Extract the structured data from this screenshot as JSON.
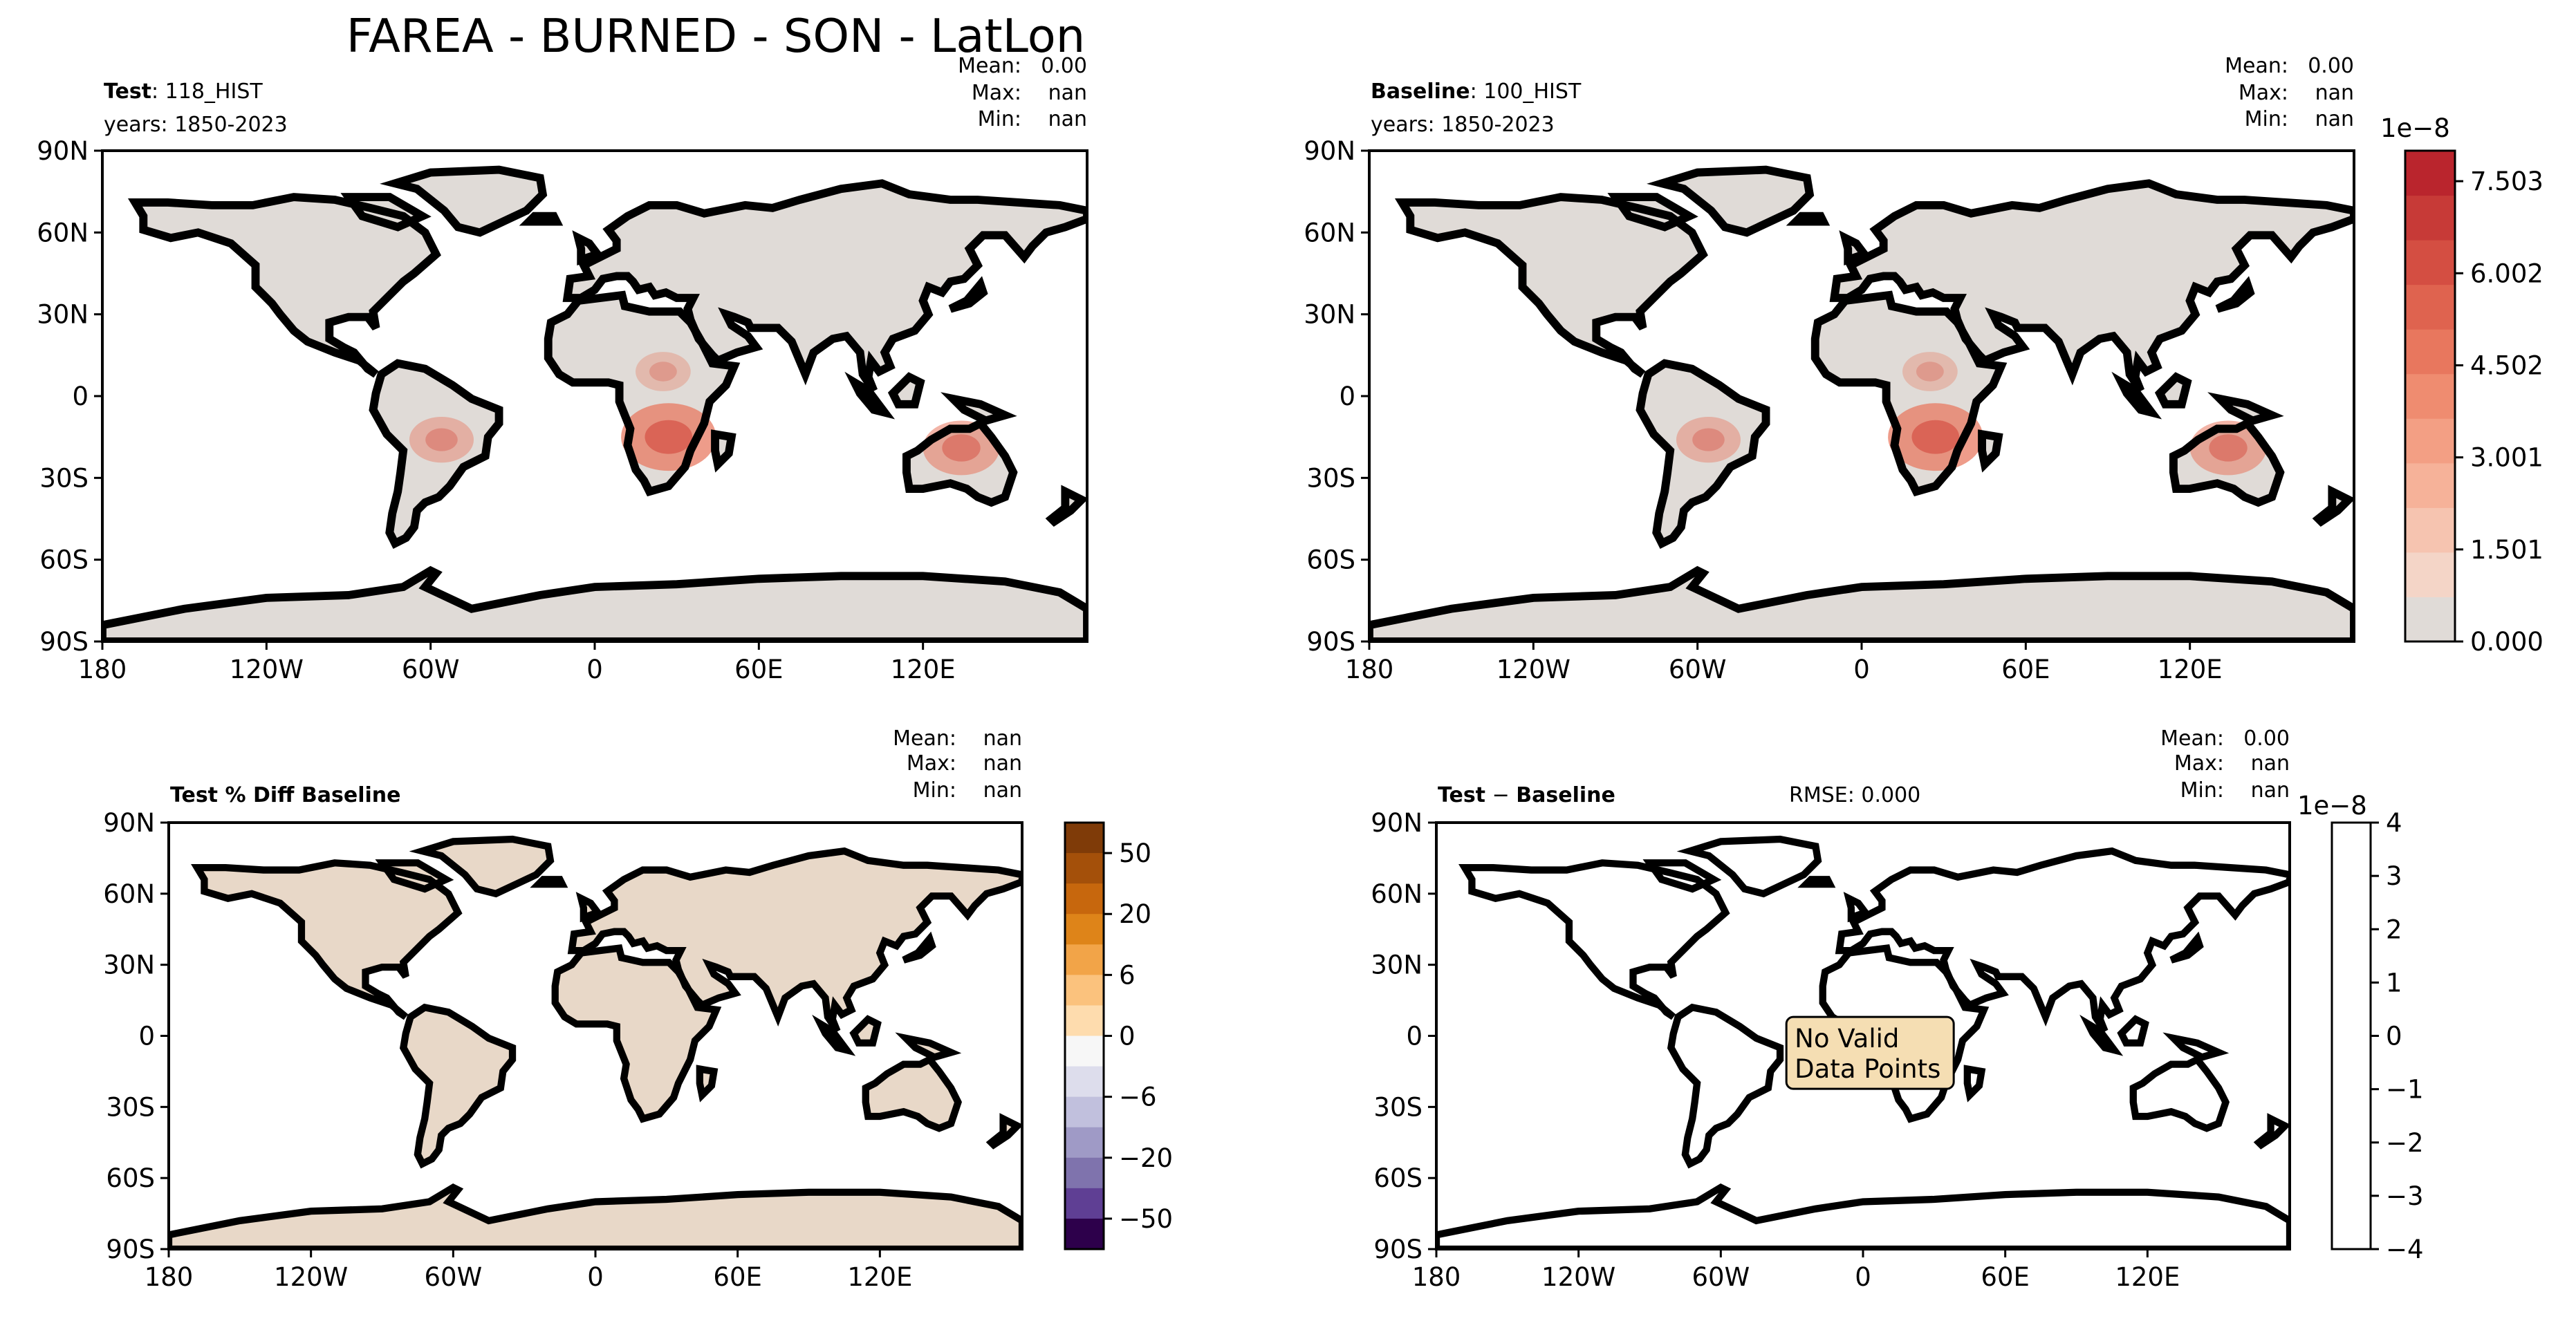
{
  "figure": {
    "title": "FAREA - BURNED - SON - LatLon"
  },
  "chart_data": [
    {
      "type": "heatmap",
      "panel": "test",
      "label_bold": "Test",
      "label_rest": ": 118_HIST",
      "years": "years: 1850-2023",
      "stats": {
        "mean": "0.00",
        "max": "nan",
        "min": "nan"
      },
      "lon_ticks": [
        "180",
        "120W",
        "60W",
        "0",
        "60E",
        "120E"
      ],
      "lat_ticks": [
        "90N",
        "60N",
        "30N",
        "0",
        "30S",
        "60S",
        "90S"
      ],
      "xlim": [
        -180,
        180
      ],
      "ylim": [
        -90,
        90
      ],
      "land_color": "#e0dbd7",
      "hotspots": [
        {
          "region": "southern-africa",
          "lat": -15,
          "lon": 27,
          "level": 0.8
        },
        {
          "region": "northern-australia",
          "lat": -19,
          "lon": 134,
          "level": 0.5
        },
        {
          "region": "south-america",
          "lat": -16,
          "lon": -56,
          "level": 0.3
        },
        {
          "region": "sahel",
          "lat": 9,
          "lon": 25,
          "level": 0.15
        }
      ]
    },
    {
      "type": "heatmap",
      "panel": "baseline",
      "label_bold": "Baseline",
      "label_rest": ": 100_HIST",
      "years": "years: 1850-2023",
      "stats": {
        "mean": "0.00",
        "max": "nan",
        "min": "nan"
      },
      "lon_ticks": [
        "180",
        "120W",
        "60W",
        "0",
        "60E",
        "120E"
      ],
      "lat_ticks": [
        "90N",
        "60N",
        "30N",
        "0",
        "30S",
        "60S",
        "90S"
      ],
      "xlim": [
        -180,
        180
      ],
      "ylim": [
        -90,
        90
      ],
      "land_color": "#e0dbd7",
      "colorbar": {
        "scale_label": "1e−8",
        "ticks": [
          "0.000",
          "1.501",
          "3.001",
          "4.502",
          "6.002",
          "7.503"
        ],
        "range": [
          0,
          8.0
        ],
        "colors": [
          "#e0dbd7",
          "#f4d5c7",
          "#f6c4b0",
          "#f6b299",
          "#f39f84",
          "#ef8c70",
          "#e8775e",
          "#df634f",
          "#d44e42",
          "#c73a37",
          "#ba252d"
        ]
      }
    },
    {
      "type": "heatmap",
      "panel": "percent-diff",
      "label_bold": "Test % Diff Baseline",
      "stats": {
        "mean": "nan",
        "max": "nan",
        "min": "nan"
      },
      "lon_ticks": [
        "180",
        "120W",
        "60W",
        "0",
        "60E",
        "120E"
      ],
      "lat_ticks": [
        "90N",
        "60N",
        "30N",
        "0",
        "30S",
        "60S",
        "90S"
      ],
      "xlim": [
        -180,
        180
      ],
      "ylim": [
        -90,
        90
      ],
      "colorbar": {
        "ticks": [
          "50",
          "20",
          "6",
          "0",
          "−6",
          "−20",
          "−50"
        ],
        "colors": [
          "#7f3b08",
          "#a4500a",
          "#c7670d",
          "#de8419",
          "#f2a448",
          "#fbc27d",
          "#fedcae",
          "#f7f7f7",
          "#ddddec",
          "#c1c0dd",
          "#9f9ac6",
          "#7f73ad",
          "#5f3f94",
          "#2d004b"
        ]
      }
    },
    {
      "type": "heatmap",
      "panel": "difference",
      "label_bold": "Test",
      "label_minus": "−",
      "label_bold2": "Baseline",
      "rmse": "RMSE: 0.000",
      "stats": {
        "mean": "0.00",
        "max": "nan",
        "min": "nan"
      },
      "lon_ticks": [
        "180",
        "120W",
        "60W",
        "0",
        "60E",
        "120E"
      ],
      "lat_ticks": [
        "90N",
        "60N",
        "30N",
        "0",
        "30S",
        "60S",
        "90S"
      ],
      "xlim": [
        -180,
        180
      ],
      "ylim": [
        -90,
        90
      ],
      "no_data_text": [
        "No Valid",
        "Data Points"
      ],
      "colorbar": {
        "scale_label": "1e−8",
        "ticks": [
          "4",
          "3",
          "2",
          "1",
          "0",
          "−1",
          "−2",
          "−3",
          "−4"
        ]
      }
    }
  ],
  "stat_labels": {
    "mean": "Mean:",
    "max": "Max:",
    "min": "Min:"
  }
}
